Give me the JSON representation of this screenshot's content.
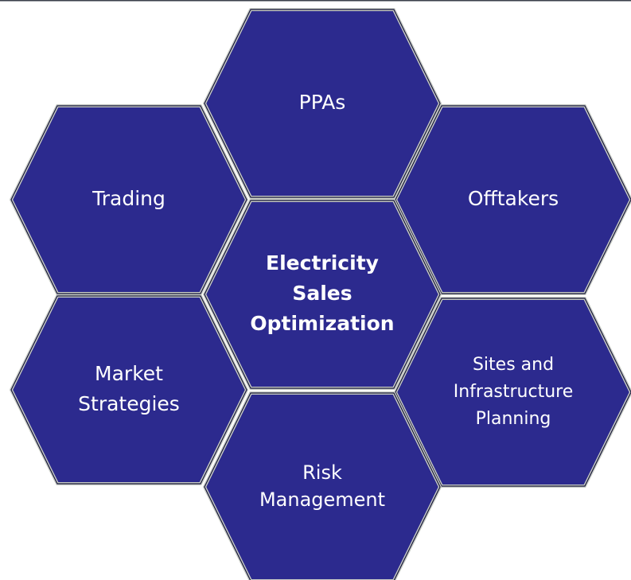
{
  "nodes": [
    {
      "lines": [
        "PPAs"
      ]
    },
    {
      "lines": [
        "Trading"
      ]
    },
    {
      "lines": [
        "Offtakers"
      ]
    },
    {
      "lines": [
        "Electricity",
        "Sales",
        "Optimization"
      ]
    },
    {
      "lines": [
        "Market",
        "Strategies"
      ]
    },
    {
      "lines": [
        "Sites and",
        "Infrastructure",
        "Planning"
      ]
    },
    {
      "lines": [
        "Risk",
        "Management"
      ]
    }
  ]
}
